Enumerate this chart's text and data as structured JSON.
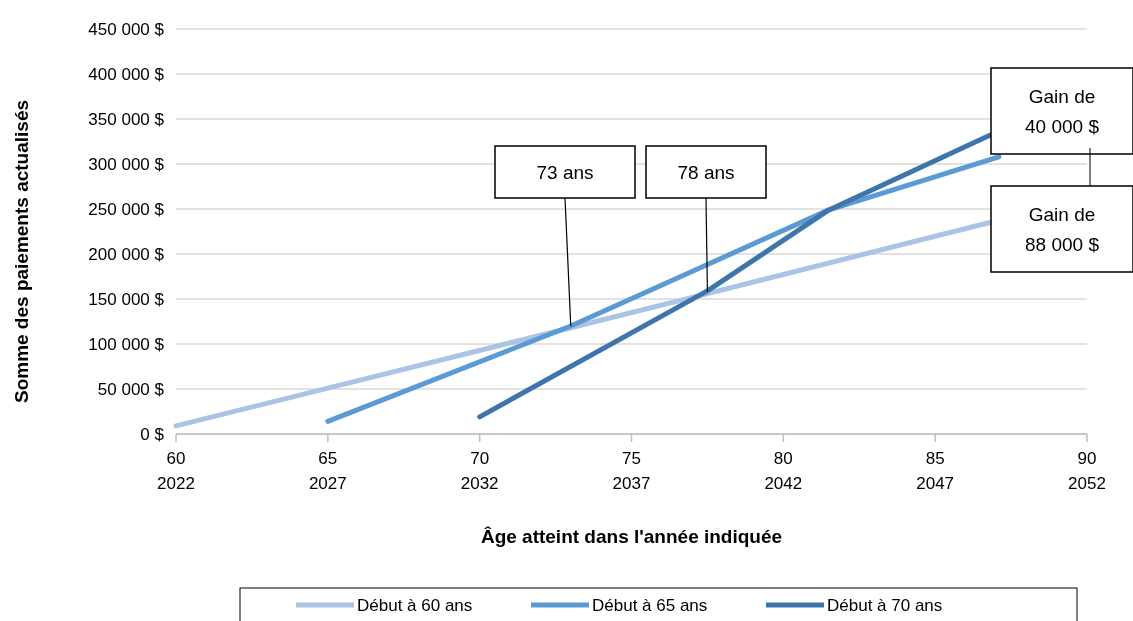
{
  "chart_data": {
    "type": "line",
    "xlabel": "Âge atteint dans l'année indiquée",
    "ylabel": "Somme des paiements actualisés",
    "xlim": [
      60,
      90
    ],
    "xticks": [
      60,
      65,
      70,
      75,
      80,
      85,
      90
    ],
    "x2lim": [
      2022,
      2052
    ],
    "x2ticks": [
      2022,
      2027,
      2032,
      2037,
      2042,
      2047,
      2052
    ],
    "ylim": [
      0,
      450000
    ],
    "yticks": [
      {
        "value": 0,
        "label": "0 $"
      },
      {
        "value": 50000,
        "label": "50 000 $"
      },
      {
        "value": 100000,
        "label": "100 000 $"
      },
      {
        "value": 150000,
        "label": "150 000 $"
      },
      {
        "value": 200000,
        "label": "200 000 $"
      },
      {
        "value": 250000,
        "label": "250 000 $"
      },
      {
        "value": 300000,
        "label": "300 000 $"
      },
      {
        "value": 350000,
        "label": "350 000 $"
      },
      {
        "value": 400000,
        "label": "400 000 $"
      },
      {
        "value": 450000,
        "label": "450 000 $"
      }
    ],
    "grid": "y",
    "legend": "bottom",
    "marker": "none",
    "line_style": "solid",
    "series": [
      {
        "name": "Début à 60 ans",
        "color": "#a9c4e4",
        "x": [
          60,
          73,
          77.5,
          86.8
        ],
        "values": [
          9000,
          118000,
          156000,
          235000
        ]
      },
      {
        "name": "Début à 65 ans",
        "color": "#5b9bd5",
        "x": [
          65,
          73,
          81.5,
          87.1
        ],
        "values": [
          14000,
          120000,
          249000,
          308000
        ]
      },
      {
        "name": "Début à 70 ans",
        "color": "#3d76ad",
        "x": [
          70,
          77.5,
          81.5,
          86.8
        ],
        "values": [
          19000,
          159000,
          249000,
          332000
        ]
      }
    ],
    "annotations": [
      {
        "text": "73 ans",
        "x": 73,
        "y": 120000
      },
      {
        "text": "78 ans",
        "x": 77.5,
        "y": 158000
      },
      "Gain de\n40 000 $",
      "Gain de\n88 000 $"
    ]
  }
}
